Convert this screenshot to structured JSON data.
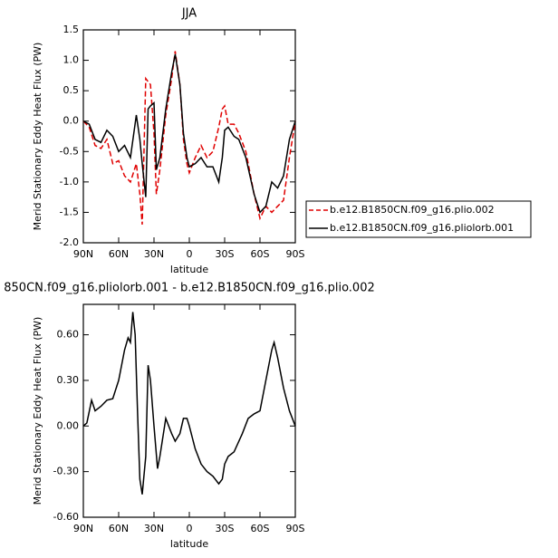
{
  "chart_data": [
    {
      "type": "line",
      "title": "JJA",
      "x_label": "latitude",
      "y_label": "Merid Stationary Eddy Heat Flux (PW)",
      "xlim": [
        90,
        -90
      ],
      "xticks": [
        {
          "value": 90,
          "label": "90N"
        },
        {
          "value": 60,
          "label": "60N"
        },
        {
          "value": 30,
          "label": "30N"
        },
        0,
        {
          "value": -30,
          "label": "30S"
        },
        {
          "value": -60,
          "label": "60S"
        },
        {
          "value": -90,
          "label": "90S"
        }
      ],
      "ylim": [
        -2,
        1.5
      ],
      "yticks": [
        {
          "value": -2,
          "label": "-2.0"
        },
        -1.5,
        {
          "value": -1,
          "label": "-1.0"
        },
        -0.5,
        {
          "value": 0,
          "label": "0.0"
        },
        0.5,
        {
          "value": 1,
          "label": "1.0"
        },
        1.5
      ],
      "legend": "outside-right",
      "x": [
        90,
        85,
        80,
        75,
        70,
        65,
        60,
        55,
        50,
        45,
        42,
        40,
        37,
        35,
        33,
        30,
        28,
        25,
        20,
        15,
        12,
        8,
        5,
        2,
        0,
        -5,
        -10,
        -15,
        -20,
        -25,
        -28,
        -30,
        -33,
        -38,
        -42,
        -48,
        -55,
        -60,
        -65,
        -70,
        -75,
        -80,
        -85,
        -90
      ],
      "series": [
        {
          "name": "b.e12.B1850CN.f09_g16.plio.002",
          "color": "#e00000",
          "dashed": true,
          "values": [
            0,
            -0.1,
            -0.4,
            -0.45,
            -0.3,
            -0.7,
            -0.65,
            -0.9,
            -1.0,
            -0.7,
            -1.2,
            -1.7,
            0.7,
            0.65,
            0.6,
            -0.2,
            -1.2,
            -0.8,
            0.1,
            0.7,
            1.15,
            0.6,
            -0.3,
            -0.7,
            -0.85,
            -0.6,
            -0.4,
            -0.6,
            -0.5,
            -0.1,
            0.2,
            0.25,
            -0.05,
            -0.05,
            -0.2,
            -0.5,
            -1.2,
            -1.6,
            -1.4,
            -1.5,
            -1.4,
            -1.3,
            -0.6,
            0
          ]
        },
        {
          "name": "b.e12.B1850CN.f09_g16.pliolorb.001",
          "color": "#000000",
          "dashed": false,
          "values": [
            0,
            -0.05,
            -0.3,
            -0.35,
            -0.15,
            -0.25,
            -0.5,
            -0.4,
            -0.6,
            0.1,
            -0.3,
            -0.7,
            -1.25,
            0.2,
            0.25,
            0.3,
            -0.8,
            -0.6,
            0.2,
            0.8,
            1.1,
            0.6,
            -0.2,
            -0.6,
            -0.75,
            -0.7,
            -0.6,
            -0.75,
            -0.75,
            -1.0,
            -0.6,
            -0.15,
            -0.1,
            -0.25,
            -0.3,
            -0.6,
            -1.2,
            -1.5,
            -1.4,
            -1.0,
            -1.1,
            -0.9,
            -0.3,
            0
          ]
        }
      ]
    },
    {
      "type": "line",
      "title": "850CN.f09_g16.pliolorb.001 - b.e12.B1850CN.f09_g16.plio.002",
      "x_label": "latitude",
      "y_label": "Merid Stationary Eddy Heat Flux (PW)",
      "xlim": [
        90,
        -90
      ],
      "xticks": [
        {
          "value": 90,
          "label": "90N"
        },
        {
          "value": 60,
          "label": "60N"
        },
        {
          "value": 30,
          "label": "30N"
        },
        0,
        {
          "value": -30,
          "label": "30S"
        },
        {
          "value": -60,
          "label": "60S"
        },
        {
          "value": -90,
          "label": "90S"
        }
      ],
      "ylim": [
        -0.6,
        0.8
      ],
      "yticks": [
        {
          "value": -0.6,
          "label": "-0.60"
        },
        {
          "value": -0.3,
          "label": "-0.30"
        },
        {
          "value": 0,
          "label": "0.00"
        },
        {
          "value": 0.3,
          "label": "0.30"
        },
        {
          "value": 0.6,
          "label": "0.60"
        }
      ],
      "x": [
        90,
        87,
        83,
        80,
        75,
        70,
        65,
        60,
        55,
        52,
        50,
        48,
        46,
        44,
        42,
        40,
        37,
        35,
        33,
        30,
        27,
        25,
        20,
        15,
        12,
        8,
        5,
        2,
        0,
        -5,
        -10,
        -15,
        -20,
        -25,
        -28,
        -30,
        -33,
        -38,
        -45,
        -50,
        -55,
        -60,
        -65,
        -70,
        -72,
        -75,
        -80,
        -85,
        -90
      ],
      "series": [
        {
          "color": "#000000",
          "dashed": false,
          "values": [
            0,
            0.02,
            0.17,
            0.1,
            0.13,
            0.17,
            0.18,
            0.3,
            0.5,
            0.58,
            0.55,
            0.75,
            0.6,
            0.1,
            -0.35,
            -0.45,
            -0.2,
            0.4,
            0.3,
            0.0,
            -0.28,
            -0.2,
            0.05,
            -0.05,
            -0.1,
            -0.05,
            0.05,
            0.05,
            0.0,
            -0.15,
            -0.25,
            -0.3,
            -0.33,
            -0.38,
            -0.35,
            -0.25,
            -0.2,
            -0.17,
            -0.05,
            0.05,
            0.08,
            0.1,
            0.3,
            0.5,
            0.55,
            0.45,
            0.25,
            0.1,
            0
          ]
        }
      ]
    }
  ]
}
